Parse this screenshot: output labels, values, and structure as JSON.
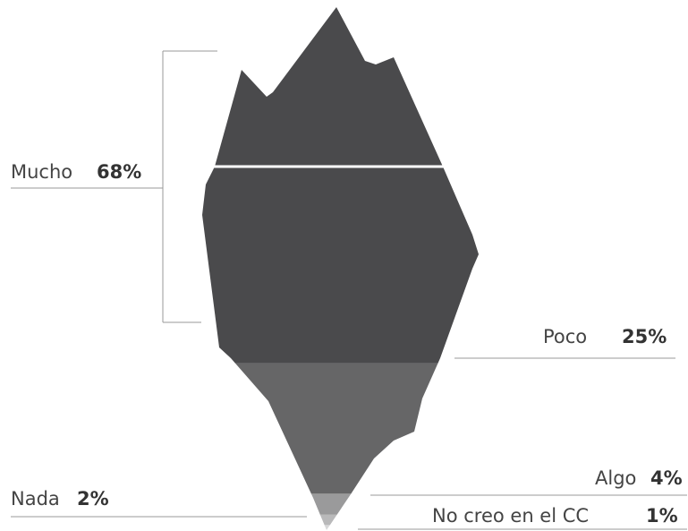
{
  "chart_data": {
    "type": "iceberg",
    "categories": [
      "Mucho",
      "Poco",
      "Algo",
      "Nada",
      "No creo en el CC"
    ],
    "values": [
      68,
      25,
      4,
      2,
      1
    ],
    "value_labels": [
      "68%",
      "25%",
      "4%",
      "2%",
      "1%"
    ],
    "colors": [
      "#4a4a4c",
      "#666667",
      "#9a9a9b",
      "#b9b9ba",
      "#d8d8d9"
    ]
  }
}
